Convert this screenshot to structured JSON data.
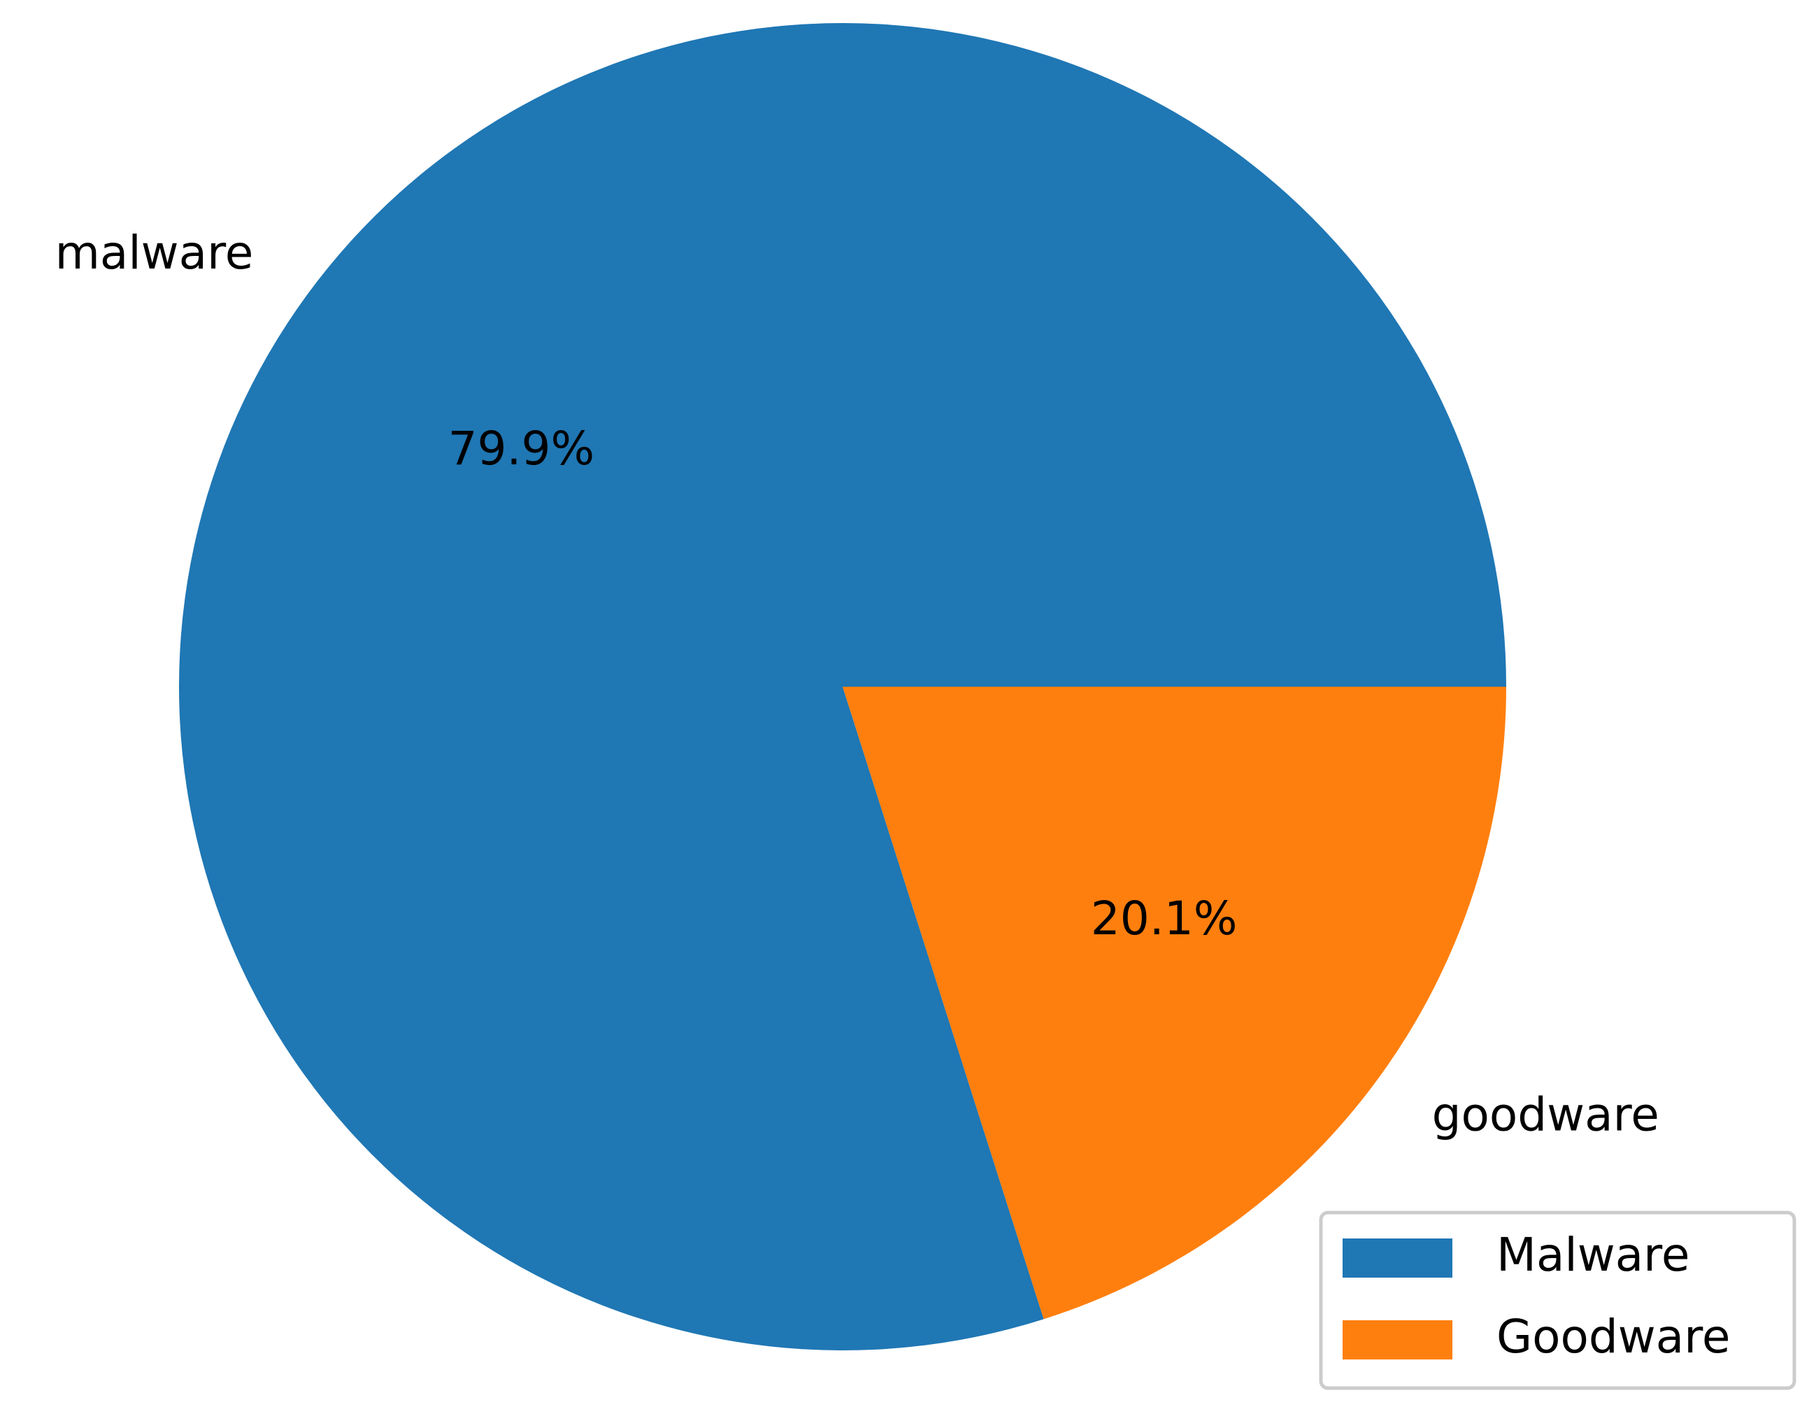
{
  "chart_data": {
    "type": "pie",
    "categories": [
      "malware",
      "goodware"
    ],
    "values": [
      79.9,
      20.1
    ],
    "value_labels": [
      "79.9%",
      "20.1%"
    ],
    "colors": [
      "#1f77b4",
      "#ff7f0e"
    ],
    "legend": [
      "Malware",
      "Goodware"
    ],
    "legend_position": "lower right",
    "start_angle": 0,
    "counterclock": true
  }
}
